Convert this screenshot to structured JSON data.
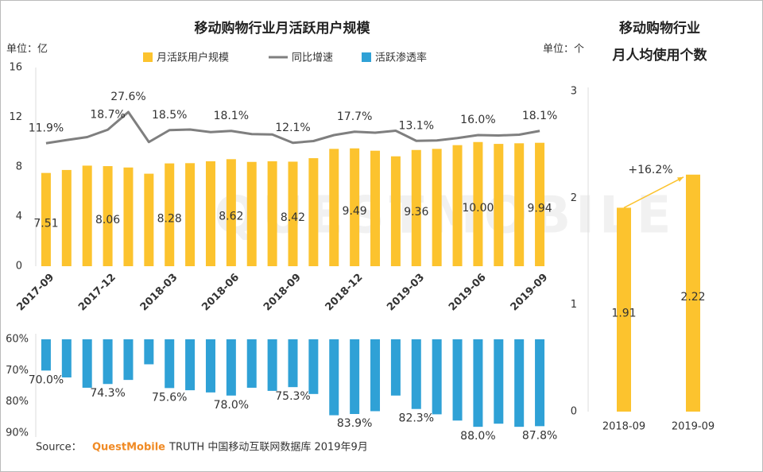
{
  "chart_data": [
    {
      "type": "bar",
      "title": "移动购物行业月活跃用户规模",
      "unit": "单位：亿",
      "categories": [
        "2017-09",
        null,
        null,
        "2017-12",
        null,
        null,
        "2018-03",
        null,
        null,
        "2018-06",
        null,
        null,
        "2018-09",
        null,
        null,
        "2018-12",
        null,
        null,
        "2019-03",
        null,
        null,
        "2019-06",
        null,
        null,
        "2019-09"
      ],
      "series": [
        {
          "name": "月活跃用户规模",
          "type": "bar",
          "color": "#fcc32e",
          "values": [
            7.51,
            7.75,
            8.1,
            8.06,
            7.95,
            7.45,
            8.28,
            8.3,
            8.45,
            8.62,
            8.4,
            8.45,
            8.42,
            8.7,
            9.45,
            9.49,
            9.3,
            8.85,
            9.36,
            9.45,
            9.75,
            10,
            9.85,
            9.9,
            9.94
          ],
          "value_labels": [
            "7.51",
            null,
            null,
            "8.06",
            null,
            null,
            "8.28",
            null,
            null,
            "8.62",
            null,
            null,
            "8.42",
            null,
            null,
            "9.49",
            null,
            null,
            "9.36",
            null,
            null,
            "10.00",
            null,
            null,
            "9.94"
          ]
        },
        {
          "name": "同比增速",
          "type": "line",
          "axis": "y2",
          "color": "#7f7f7f",
          "values": [
            11.9,
            13.5,
            15,
            18.7,
            27.6,
            12.5,
            18.5,
            18.8,
            17.5,
            18.1,
            16.5,
            16.3,
            12.1,
            13,
            16,
            17.7,
            17.2,
            18.2,
            13.1,
            13.3,
            14.5,
            16.0,
            15.8,
            16.2,
            18.1
          ],
          "value_labels": [
            "11.9%",
            null,
            null,
            "18.7%",
            "27.6%",
            null,
            "18.5%",
            null,
            null,
            "18.1%",
            null,
            null,
            "12.1%",
            null,
            null,
            "17.7%",
            null,
            null,
            "13.1%",
            null,
            null,
            "16.0%",
            null,
            null,
            "18.1%"
          ]
        }
      ],
      "ylim": [
        0,
        16
      ],
      "yticks": [
        0,
        4,
        8,
        12,
        16
      ],
      "y2lim": [
        -50,
        50
      ],
      "grid": false
    },
    {
      "type": "bar",
      "inverted": true,
      "series": [
        {
          "name": "活跃渗透率",
          "color": "#2fa1d6",
          "values": [
            70.0,
            72.2,
            75.5,
            74.3,
            73,
            68,
            75.6,
            76.3,
            77,
            78.0,
            75.5,
            76.5,
            75.3,
            77.5,
            84.3,
            83.9,
            83,
            78,
            82.3,
            84,
            86,
            88.0,
            87,
            88,
            87.8
          ],
          "value_labels": [
            "70.0%",
            null,
            null,
            "74.3%",
            null,
            null,
            "75.6%",
            null,
            null,
            "78.0%",
            null,
            null,
            "75.3%",
            null,
            null,
            "83.9%",
            null,
            null,
            "82.3%",
            null,
            null,
            "88.0%",
            null,
            null,
            "87.8%"
          ]
        }
      ],
      "ylim": [
        60,
        90
      ],
      "yticks": [
        {
          "value": 60,
          "label": "60%"
        },
        {
          "value": 70,
          "label": "70%"
        },
        {
          "value": 80,
          "label": "80%"
        },
        {
          "value": 90,
          "label": "90%"
        }
      ]
    },
    {
      "type": "bar",
      "title": "移动购物行业",
      "subtitle": "月人均使用个数",
      "unit": "单位：个",
      "categories": [
        "2018-09",
        "2019-09"
      ],
      "values": [
        1.91,
        2.22
      ],
      "color": "#fcc32e",
      "annotation": "+16.2%",
      "ylim": [
        0,
        3
      ],
      "yticks": [
        0,
        1,
        2,
        3
      ]
    }
  ],
  "source": {
    "prefix": "Source：",
    "brand": "QuestMobile",
    "text": "TRUTH 中国移动互联网数据库 2019年9月"
  },
  "watermark": "QUESTMOBILE"
}
